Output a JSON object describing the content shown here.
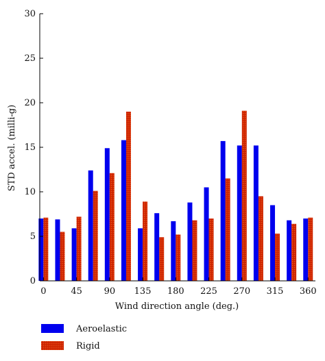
{
  "chart_data": {
    "type": "bar",
    "xlabel": "Wind direction angle (deg.)",
    "ylabel": "STD accel. (milli-g)",
    "ylim": [
      0,
      30
    ],
    "y_ticks": [
      0,
      5,
      10,
      15,
      20,
      25,
      30
    ],
    "x": [
      0,
      22.5,
      45,
      67.5,
      90,
      112.5,
      135,
      157.5,
      180,
      202.5,
      225,
      247.5,
      270,
      292.5,
      315,
      337.5,
      360
    ],
    "x_tick_labels": [
      "0",
      "45",
      "90",
      "135",
      "180",
      "225",
      "270",
      "315",
      "360"
    ],
    "x_tick_values": [
      0,
      45,
      90,
      135,
      180,
      225,
      270,
      315,
      360
    ],
    "legend_position": "bottom-left",
    "series": [
      {
        "name": "Aeroelastic",
        "color": "#0000ee",
        "values": [
          7.0,
          6.9,
          5.9,
          12.4,
          14.9,
          15.8,
          5.9,
          7.6,
          6.7,
          8.8,
          10.5,
          15.7,
          15.2,
          15.2,
          8.5,
          6.8,
          7.0
        ]
      },
      {
        "name": "Rigid",
        "color": "#cc2200",
        "values": [
          7.1,
          5.5,
          7.2,
          10.1,
          12.1,
          19.0,
          8.9,
          4.9,
          5.2,
          6.8,
          7.0,
          11.5,
          19.1,
          9.5,
          5.3,
          6.4,
          7.1
        ]
      }
    ]
  }
}
